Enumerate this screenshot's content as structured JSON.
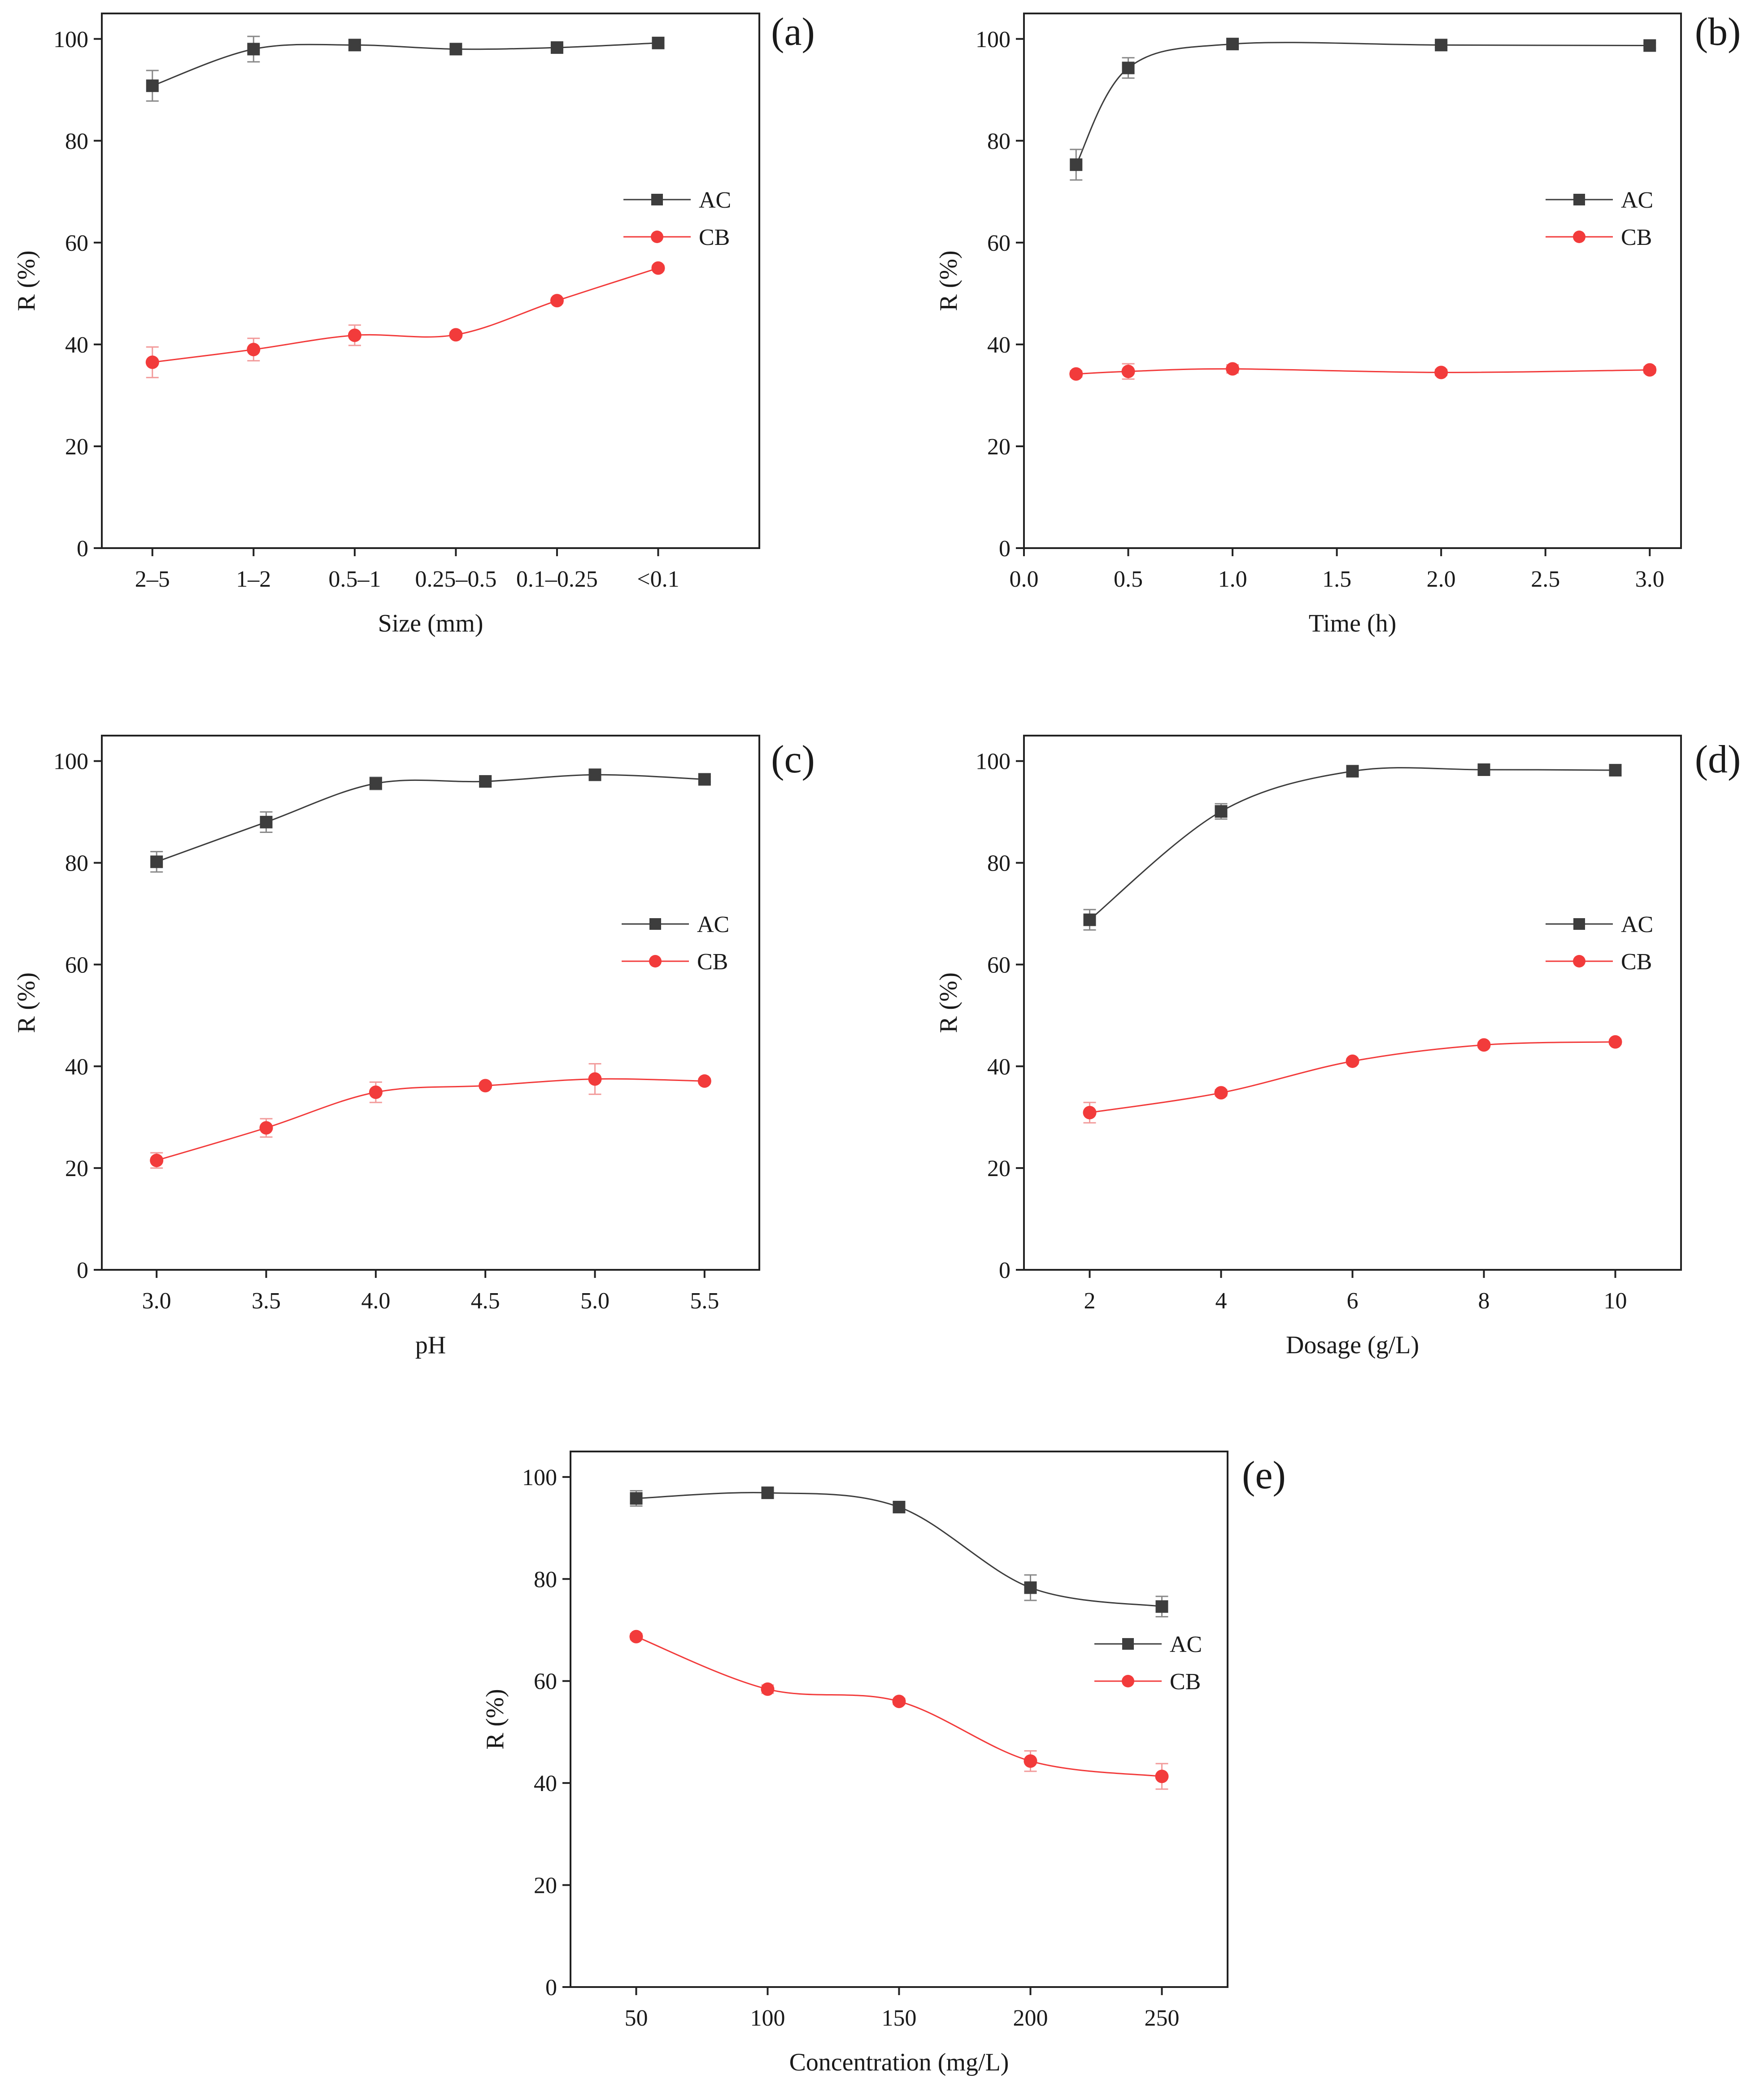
{
  "colors": {
    "AC": "#3d3d3d",
    "CB": "#f23b3b",
    "axis": "#222222",
    "error_AC": "#888888",
    "error_CB": "#f29a9a"
  },
  "legend": {
    "AC": "AC",
    "CB": "CB"
  },
  "chart_data": [
    {
      "panel_label": "(a)",
      "type": "line",
      "x_type": "categorical",
      "categories": [
        "2–5",
        "1–2",
        "0.5–1",
        "0.25–0.5",
        "0.1–0.25",
        "<0.1"
      ],
      "xlabel": "Size (mm)",
      "ylabel": "R (%)",
      "ylim": [
        0,
        105
      ],
      "yticks": [
        0,
        20,
        40,
        60,
        80,
        100
      ],
      "ytick_labels": [
        "0",
        "20",
        "40",
        "60",
        "80",
        "100"
      ],
      "legend_position": "center-right",
      "series": [
        {
          "name": "AC",
          "marker": "square",
          "values": [
            90.8,
            98.0,
            98.8,
            98.0,
            98.3,
            99.2
          ],
          "errors": [
            3.0,
            2.5,
            1.0,
            0.6,
            0.5,
            0.5
          ]
        },
        {
          "name": "CB",
          "marker": "circle",
          "values": [
            36.5,
            39.0,
            41.8,
            41.9,
            48.6,
            55.0
          ],
          "errors": [
            3.0,
            2.2,
            2.0,
            0.5,
            0.5,
            0.5
          ]
        }
      ]
    },
    {
      "panel_label": "(b)",
      "type": "line",
      "x_type": "numeric",
      "x_range": [
        0,
        3.15
      ],
      "xticks": [
        0,
        0.5,
        1.0,
        1.5,
        2.0,
        2.5,
        3.0
      ],
      "xtick_labels": [
        "0.0",
        "0.5",
        "1.0",
        "1.5",
        "2.0",
        "2.5",
        "3.0"
      ],
      "xlabel": "Time (h)",
      "ylabel": "R (%)",
      "ylim": [
        0,
        105
      ],
      "yticks": [
        0,
        20,
        40,
        60,
        80,
        100
      ],
      "ytick_labels": [
        "0",
        "20",
        "40",
        "60",
        "80",
        "100"
      ],
      "legend_position": "center-right",
      "series": [
        {
          "name": "AC",
          "marker": "square",
          "x": [
            0.25,
            0.5,
            1.0,
            2.0,
            3.0
          ],
          "values": [
            75.3,
            94.3,
            99.0,
            98.8,
            98.7
          ],
          "errors": [
            3.0,
            2.0,
            0.5,
            0.5,
            0.5
          ]
        },
        {
          "name": "CB",
          "marker": "circle",
          "x": [
            0.25,
            0.5,
            1.0,
            2.0,
            3.0
          ],
          "values": [
            34.2,
            34.7,
            35.2,
            34.5,
            35.0
          ],
          "errors": [
            0.6,
            1.5,
            0.8,
            0.6,
            0.6
          ]
        }
      ]
    },
    {
      "panel_label": "(c)",
      "type": "line",
      "x_type": "numeric",
      "x_range": [
        2.75,
        5.75
      ],
      "xticks": [
        3.0,
        3.5,
        4.0,
        4.5,
        5.0,
        5.5
      ],
      "xtick_labels": [
        "3.0",
        "3.5",
        "4.0",
        "4.5",
        "5.0",
        "5.5"
      ],
      "xlabel": "pH",
      "ylabel": "R (%)",
      "ylim": [
        0,
        105
      ],
      "yticks": [
        0,
        20,
        40,
        60,
        80,
        100
      ],
      "ytick_labels": [
        "0",
        "20",
        "40",
        "60",
        "80",
        "100"
      ],
      "legend_position": "center-right",
      "series": [
        {
          "name": "AC",
          "marker": "square",
          "x": [
            3.0,
            3.5,
            4.0,
            4.5,
            5.0,
            5.5
          ],
          "values": [
            80.2,
            88.0,
            95.6,
            96.0,
            97.3,
            96.4
          ],
          "errors": [
            2.0,
            2.0,
            1.2,
            0.5,
            0.5,
            0.5
          ]
        },
        {
          "name": "CB",
          "marker": "circle",
          "x": [
            3.0,
            3.5,
            4.0,
            4.5,
            5.0,
            5.5
          ],
          "values": [
            21.5,
            27.9,
            34.9,
            36.2,
            37.5,
            37.1
          ],
          "errors": [
            1.5,
            1.8,
            2.0,
            0.5,
            3.0,
            0.5
          ]
        }
      ]
    },
    {
      "panel_label": "(d)",
      "type": "line",
      "x_type": "numeric",
      "x_range": [
        1.0,
        11.0
      ],
      "xticks": [
        2,
        4,
        6,
        8,
        10
      ],
      "xtick_labels": [
        "2",
        "4",
        "6",
        "8",
        "10"
      ],
      "xlabel": "Dosage (g/L)",
      "ylabel": "R (%)",
      "ylim": [
        0,
        105
      ],
      "yticks": [
        0,
        20,
        40,
        60,
        80,
        100
      ],
      "ytick_labels": [
        "0",
        "20",
        "40",
        "60",
        "80",
        "100"
      ],
      "legend_position": "center-right",
      "series": [
        {
          "name": "AC",
          "marker": "square",
          "x": [
            2,
            4,
            6,
            8,
            10
          ],
          "values": [
            68.8,
            90.1,
            98.0,
            98.3,
            98.2
          ],
          "errors": [
            2.0,
            1.5,
            0.5,
            0.5,
            0.5
          ]
        },
        {
          "name": "CB",
          "marker": "circle",
          "x": [
            2,
            4,
            6,
            8,
            10
          ],
          "values": [
            30.9,
            34.8,
            41.0,
            44.2,
            44.8
          ],
          "errors": [
            2.0,
            0.6,
            0.5,
            0.5,
            0.5
          ]
        }
      ]
    },
    {
      "panel_label": "(e)",
      "type": "line",
      "x_type": "numeric",
      "x_range": [
        25,
        275
      ],
      "xticks": [
        50,
        100,
        150,
        200,
        250
      ],
      "xtick_labels": [
        "50",
        "100",
        "150",
        "200",
        "250"
      ],
      "xlabel": "Concentration (mg/L)",
      "ylabel": "R (%)",
      "ylim": [
        0,
        105
      ],
      "yticks": [
        0,
        20,
        40,
        60,
        80,
        100
      ],
      "ytick_labels": [
        "0",
        "20",
        "40",
        "60",
        "80",
        "100"
      ],
      "legend_position": "center-right",
      "series": [
        {
          "name": "AC",
          "marker": "square",
          "x": [
            50,
            100,
            150,
            200,
            250
          ],
          "values": [
            95.8,
            96.9,
            94.1,
            78.3,
            74.6
          ],
          "errors": [
            1.5,
            0.6,
            0.5,
            2.5,
            2.0
          ]
        },
        {
          "name": "CB",
          "marker": "circle",
          "x": [
            50,
            100,
            150,
            200,
            250
          ],
          "values": [
            68.7,
            58.4,
            56.0,
            44.3,
            41.3
          ],
          "errors": [
            0.6,
            0.8,
            0.6,
            2.0,
            2.5
          ]
        }
      ]
    }
  ]
}
